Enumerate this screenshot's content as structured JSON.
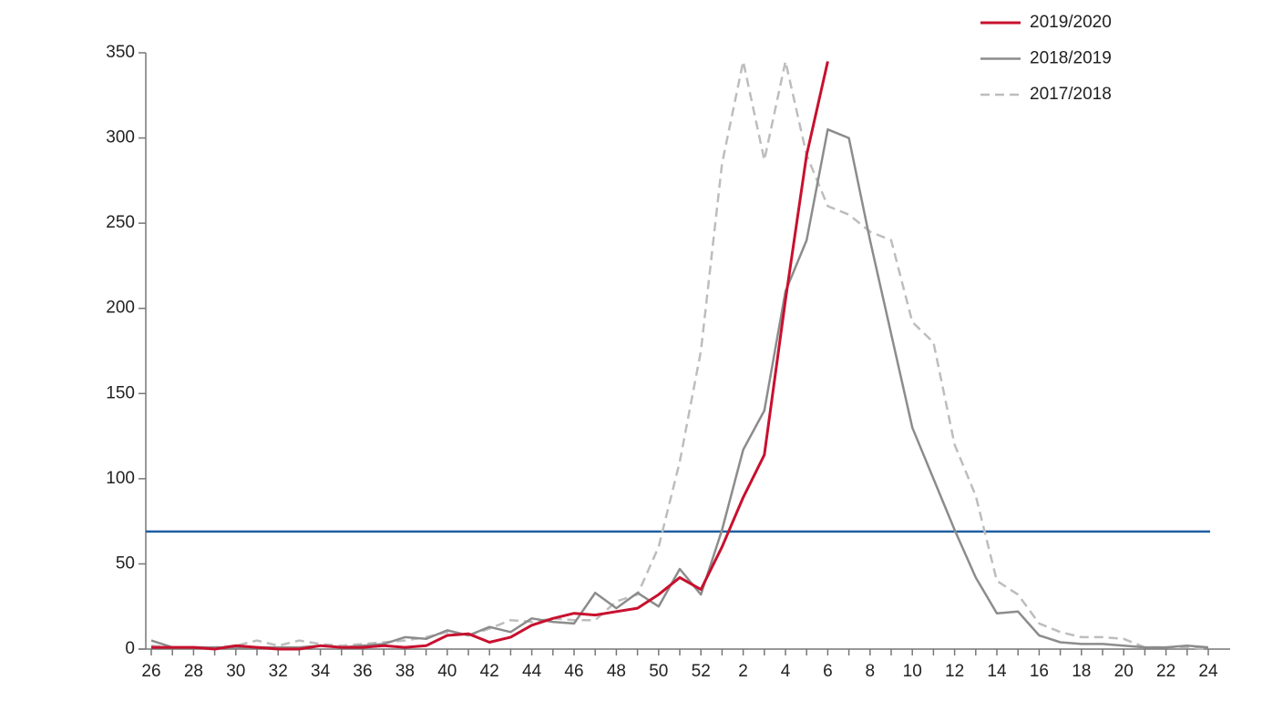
{
  "chart_data": {
    "type": "line",
    "categories": [
      "26",
      null,
      "28",
      null,
      "30",
      null,
      "32",
      null,
      "34",
      null,
      "36",
      null,
      "38",
      null,
      "40",
      null,
      "42",
      null,
      "44",
      null,
      "46",
      null,
      "48",
      null,
      "50",
      null,
      "52",
      null,
      "2",
      null,
      "4",
      null,
      "6",
      null,
      "8",
      null,
      "10",
      null,
      "12",
      null,
      "14",
      null,
      "16",
      null,
      "18",
      null,
      "20",
      null,
      "22",
      null,
      "24"
    ],
    "series": [
      {
        "name": "2019/2020",
        "color": "#c8102e",
        "dash": false,
        "values": [
          1,
          1,
          1,
          0,
          2,
          1,
          0,
          0,
          2,
          1,
          1,
          2,
          1,
          2,
          8,
          9,
          4,
          7,
          14,
          18,
          21,
          20,
          22,
          24,
          32,
          42,
          35,
          60,
          89,
          114,
          205,
          290,
          345,
          null,
          null,
          null,
          null,
          null,
          null,
          null,
          null,
          null,
          null,
          null,
          null,
          null,
          null,
          null,
          null,
          null,
          null
        ]
      },
      {
        "name": "2018/2019",
        "color": "#8c8c8c",
        "dash": false,
        "values": [
          5,
          1,
          1,
          1,
          1,
          1,
          1,
          1,
          2,
          1,
          2,
          3,
          7,
          6,
          11,
          8,
          13,
          10,
          18,
          16,
          15,
          33,
          24,
          33,
          25,
          47,
          32,
          70,
          117,
          140,
          210,
          240,
          305,
          300,
          240,
          185,
          130,
          100,
          70,
          42,
          21,
          22,
          8,
          4,
          3,
          3,
          2,
          1,
          1,
          2,
          1
        ]
      },
      {
        "name": "2017/2018",
        "color": "#bdbdbd",
        "dash": true,
        "values": [
          2,
          1,
          1,
          1,
          2,
          5,
          2,
          5,
          3,
          2,
          3,
          4,
          5,
          7,
          10,
          8,
          12,
          17,
          16,
          18,
          17,
          17,
          28,
          32,
          60,
          110,
          175,
          285,
          345,
          287,
          345,
          290,
          260,
          255,
          245,
          240,
          192,
          180,
          120,
          90,
          40,
          32,
          15,
          10,
          7,
          7,
          6,
          1,
          1,
          1,
          0
        ]
      }
    ],
    "reference_line": {
      "value": 69,
      "color": "#1f5fa0"
    },
    "ylim": [
      0,
      350
    ],
    "yticks": [
      0,
      50,
      100,
      150,
      200,
      250,
      300,
      350
    ],
    "legend": "top-right"
  }
}
